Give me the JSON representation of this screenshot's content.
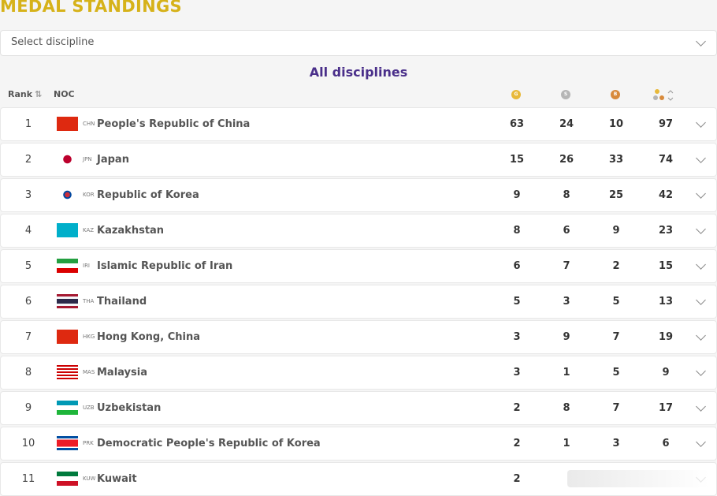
{
  "header": {
    "title": "MEDAL STANDINGS"
  },
  "filter": {
    "placeholder": "Select discipline"
  },
  "table": {
    "caption": "All disciplines",
    "columns": {
      "rank": "Rank",
      "noc": "NOC",
      "gold": "G",
      "silver": "S",
      "bronze": "B"
    },
    "rows": [
      {
        "rank": "1",
        "code": "CHN",
        "name": "People's Republic of China",
        "gold": "63",
        "silver": "24",
        "bronze": "10",
        "total": "97"
      },
      {
        "rank": "2",
        "code": "JPN",
        "name": "Japan",
        "gold": "15",
        "silver": "26",
        "bronze": "33",
        "total": "74"
      },
      {
        "rank": "3",
        "code": "KOR",
        "name": "Republic of Korea",
        "gold": "9",
        "silver": "8",
        "bronze": "25",
        "total": "42"
      },
      {
        "rank": "4",
        "code": "KAZ",
        "name": "Kazakhstan",
        "gold": "8",
        "silver": "6",
        "bronze": "9",
        "total": "23"
      },
      {
        "rank": "5",
        "code": "IRI",
        "name": "Islamic Republic of Iran",
        "gold": "6",
        "silver": "7",
        "bronze": "2",
        "total": "15"
      },
      {
        "rank": "6",
        "code": "THA",
        "name": "Thailand",
        "gold": "5",
        "silver": "3",
        "bronze": "5",
        "total": "13"
      },
      {
        "rank": "7",
        "code": "HKG",
        "name": "Hong Kong, China",
        "gold": "3",
        "silver": "9",
        "bronze": "7",
        "total": "19"
      },
      {
        "rank": "8",
        "code": "MAS",
        "name": "Malaysia",
        "gold": "3",
        "silver": "1",
        "bronze": "5",
        "total": "9"
      },
      {
        "rank": "9",
        "code": "UZB",
        "name": "Uzbekistan",
        "gold": "2",
        "silver": "8",
        "bronze": "7",
        "total": "17"
      },
      {
        "rank": "10",
        "code": "PRK",
        "name": "Democratic People's Republic of Korea",
        "gold": "2",
        "silver": "1",
        "bronze": "3",
        "total": "6"
      },
      {
        "rank": "11",
        "code": "KUW",
        "name": "Kuwait",
        "gold": "2"
      }
    ]
  }
}
